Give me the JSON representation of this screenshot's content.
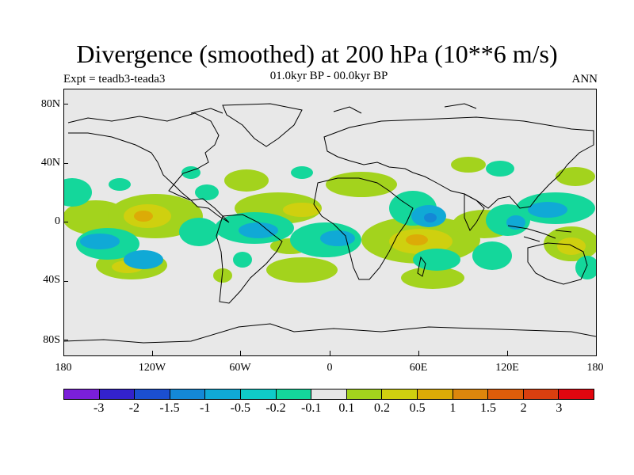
{
  "title": "Divergence (smoothed) at 200 hPa (10**6 m/s)",
  "subtitle_left": "Expt = teadb3-teada3",
  "subtitle_center": "01.0kyr BP - 00.0kyr BP",
  "subtitle_right": "ANN",
  "lat_ticks": [
    "80N",
    "40N",
    "0",
    "40S",
    "80S"
  ],
  "lon_ticks": [
    "180",
    "120W",
    "60W",
    "0",
    "60E",
    "120E",
    "180"
  ],
  "colorbar": {
    "colors": [
      "#7b1fd9",
      "#3322cc",
      "#1b4fd1",
      "#1488d6",
      "#10a9d6",
      "#0fcbc8",
      "#14d79b",
      "#e6e6e6",
      "#a3d31d",
      "#cfd00f",
      "#dcab07",
      "#dd860c",
      "#de5d0a",
      "#d93f0f",
      "#e1060f"
    ],
    "labels": [
      "-3",
      "-2",
      "-1.5",
      "-1",
      "-0.5",
      "-0.2",
      "-0.1",
      "0.1",
      "0.2",
      "0.5",
      "1",
      "1.5",
      "2",
      "3"
    ]
  },
  "map": {
    "background_color": "#e8e8e8",
    "lon_range": [
      -180,
      180
    ],
    "lat_range": [
      -90,
      90
    ]
  }
}
